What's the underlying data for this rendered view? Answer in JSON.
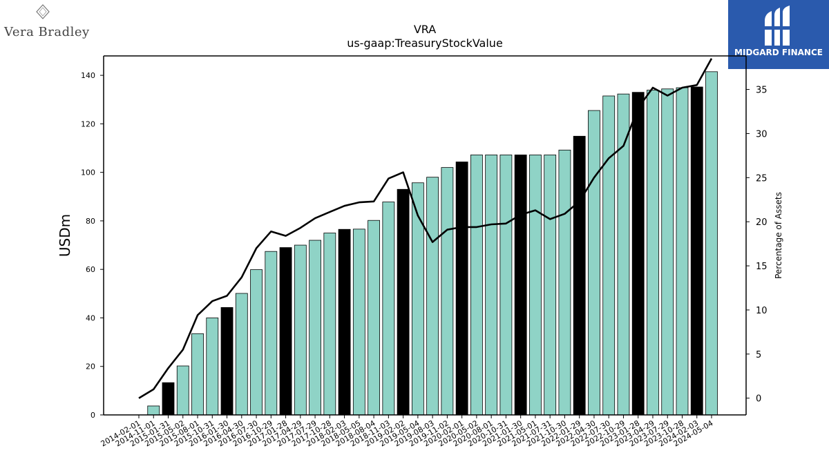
{
  "header": {
    "left_logo_text": "Vera Bradley",
    "left_logo_monogram": "VB",
    "right_logo_text": "MIDGARD FINANCE",
    "right_logo_color": "#2a5aad"
  },
  "chart_data": {
    "type": "bar",
    "title": "VRA",
    "subtitle": "us-gaap:TreasuryStockValue",
    "ylabel": "USDm",
    "y2label": "Percentage of Assets",
    "ylim": [
      0,
      148
    ],
    "y2lim": [
      -1.9,
      38.8
    ],
    "yticks": [
      0,
      20,
      40,
      60,
      80,
      100,
      120,
      140
    ],
    "y2ticks": [
      0,
      5,
      10,
      15,
      20,
      25,
      30,
      35
    ],
    "bar_color": "#8fd3c6",
    "highlight_color": "#000000",
    "categories": [
      "2014-02-01",
      "2014-11-01",
      "2015-01-31",
      "2015-05-02",
      "2015-08-01",
      "2015-10-31",
      "2016-01-30",
      "2016-04-30",
      "2016-07-30",
      "2016-10-29",
      "2017-01-28",
      "2017-04-29",
      "2017-07-29",
      "2017-10-28",
      "2018-02-03",
      "2018-05-05",
      "2018-08-04",
      "2018-11-03",
      "2019-02-02",
      "2019-05-04",
      "2019-08-03",
      "2019-11-02",
      "2020-02-01",
      "2020-05-02",
      "2020-08-01",
      "2020-10-31",
      "2021-01-30",
      "2021-05-01",
      "2021-07-31",
      "2021-10-30",
      "2022-01-29",
      "2022-04-30",
      "2022-07-30",
      "2022-10-29",
      "2023-01-28",
      "2023-04-29",
      "2023-07-29",
      "2023-10-28",
      "2024-02-03",
      "2024-05-04"
    ],
    "values": [
      0,
      3.7,
      13.3,
      20.2,
      33.5,
      40.0,
      44.3,
      50.1,
      59.9,
      67.4,
      69.0,
      70.0,
      72.0,
      75.0,
      76.5,
      76.6,
      80.2,
      87.8,
      93.0,
      95.7,
      98.0,
      102.0,
      104.3,
      107.2,
      107.2,
      107.2,
      107.2,
      107.2,
      107.2,
      109.2,
      114.9,
      125.5,
      131.5,
      132.3,
      133.0,
      133.9,
      134.4,
      134.9,
      135.2,
      141.5
    ],
    "highlight": [
      false,
      false,
      true,
      false,
      false,
      false,
      true,
      false,
      false,
      false,
      true,
      false,
      false,
      false,
      true,
      false,
      false,
      false,
      true,
      false,
      false,
      false,
      true,
      false,
      false,
      false,
      true,
      false,
      false,
      false,
      true,
      false,
      false,
      false,
      true,
      false,
      false,
      false,
      true,
      false
    ],
    "line": {
      "axis": "right",
      "values": [
        0.0,
        1.0,
        3.4,
        5.5,
        9.4,
        11.0,
        11.6,
        13.7,
        17.0,
        18.9,
        18.4,
        19.3,
        20.4,
        21.1,
        21.8,
        22.2,
        22.3,
        24.9,
        25.6,
        20.7,
        17.7,
        19.1,
        19.4,
        19.4,
        19.7,
        19.8,
        20.8,
        21.3,
        20.3,
        20.9,
        22.3,
        25.0,
        27.2,
        28.6,
        32.9,
        35.2,
        34.3,
        35.2,
        35.5,
        38.5
      ]
    }
  }
}
